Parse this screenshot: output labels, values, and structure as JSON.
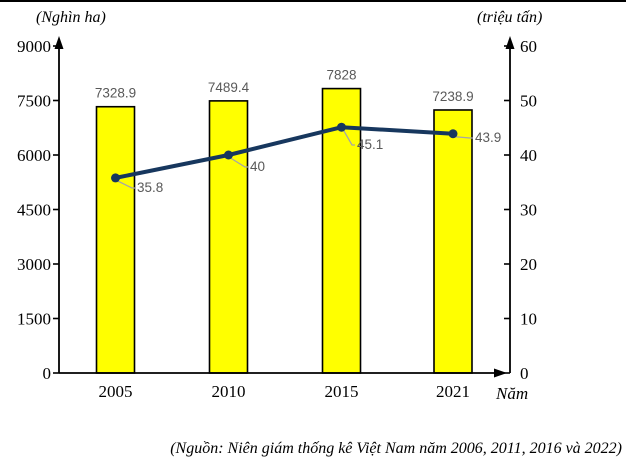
{
  "page": {
    "source_note": "(Nguồn: Niên giám thống kê Việt Nam năm 2006, 2011, 2016 và 2022)"
  },
  "chart_data": {
    "type": "combo-bar-line",
    "categories": [
      "2005",
      "2010",
      "2015",
      "2021"
    ],
    "series": [
      {
        "id": "bars-left-axis",
        "type": "bar",
        "axis": "left",
        "values": [
          7328.9,
          7489.4,
          7828,
          7238.9
        ],
        "value_labels": [
          "7328.9",
          "7489.4",
          "7828",
          "7238.9"
        ],
        "fill_color": "#FFFF00",
        "border_color": "#000000"
      },
      {
        "id": "line-right-axis",
        "type": "line",
        "axis": "right",
        "values": [
          35.8,
          40,
          45.1,
          43.9
        ],
        "value_labels": [
          "35.8",
          "40",
          "45.1",
          "43.9"
        ],
        "color": "#17375E"
      }
    ],
    "left_axis": {
      "label": "(Nghìn ha)",
      "min": 0,
      "max": 9000,
      "step": 1500,
      "ticks": [
        "0",
        "1500",
        "3000",
        "4500",
        "6000",
        "7500",
        "9000"
      ]
    },
    "right_axis": {
      "label": "(triệu tấn)",
      "min": 0,
      "max": 60,
      "step": 10,
      "ticks": [
        "0",
        "10",
        "20",
        "30",
        "40",
        "50",
        "60"
      ]
    },
    "x_axis": {
      "label": "Năm"
    },
    "grid": false,
    "legend": false,
    "axis_color": "#000000",
    "tick_label_color": "#000000",
    "value_label_color": "#595959",
    "leader_line_color": "#A6A6A6",
    "background_color": "#FFFFFF"
  }
}
